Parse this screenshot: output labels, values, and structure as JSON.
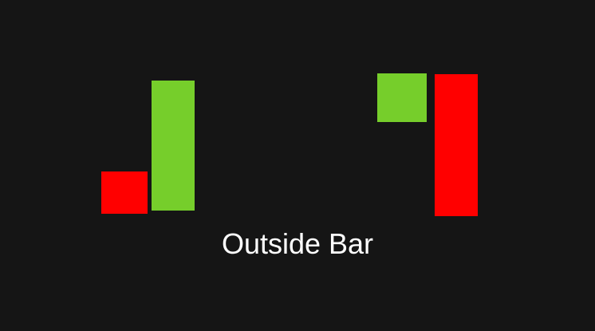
{
  "title": "Outside Bar",
  "colors": {
    "background": "#151515",
    "bullish": "#76CE2B",
    "bearish": "#FF0000",
    "text": "#FFFFFF"
  },
  "patterns": [
    {
      "name": "bullish-outside-bar",
      "candles": [
        {
          "role": "first",
          "direction": "bearish"
        },
        {
          "role": "second",
          "direction": "bullish"
        }
      ]
    },
    {
      "name": "bearish-outside-bar",
      "candles": [
        {
          "role": "first",
          "direction": "bullish"
        },
        {
          "role": "second",
          "direction": "bearish"
        }
      ]
    }
  ]
}
